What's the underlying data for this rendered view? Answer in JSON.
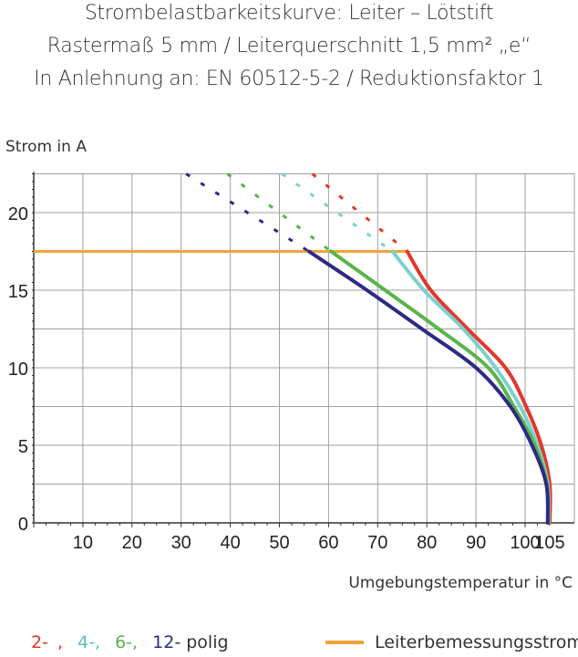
{
  "title_lines": [
    "Strombelastbarkeitskurve: Leiter – Lötstift",
    "Rastermaß 5 mm / Leiterquerschnitt 1,5 mm² „e“",
    "In Anlehnung an: EN 60512-5-2 / Reduktionsfaktor 1"
  ],
  "chart_data": {
    "type": "line",
    "xlabel": "Umgebungstemperatur in °C",
    "ylabel": "Strom in A",
    "xlim": [
      0,
      105
    ],
    "ylim": [
      0,
      22.5
    ],
    "x_ticks": [
      10,
      20,
      30,
      40,
      50,
      60,
      70,
      80,
      90,
      100,
      105
    ],
    "y_ticks": [
      0,
      5,
      10,
      15,
      20
    ],
    "grid": true,
    "series": [
      {
        "name": "2-",
        "color": "#e3372b",
        "points": [
          [
            76,
            17.5
          ],
          [
            80.8,
            15
          ],
          [
            88.3,
            12.5
          ],
          [
            96,
            10
          ],
          [
            100.2,
            7.5
          ],
          [
            103.3,
            5
          ],
          [
            105,
            2.5
          ],
          [
            105,
            0
          ]
        ],
        "dashed": [
          [
            56.7,
            22.5
          ],
          [
            76,
            17.5
          ]
        ]
      },
      {
        "name": "4-",
        "color": "#7dd0cd",
        "points": [
          [
            73,
            17.5
          ],
          [
            79.4,
            15
          ],
          [
            87.4,
            12.5
          ],
          [
            94,
            10
          ],
          [
            99,
            7.5
          ],
          [
            102.5,
            5
          ],
          [
            104.6,
            2.5
          ],
          [
            104.8,
            0
          ]
        ],
        "dashed": [
          [
            50.5,
            22.5
          ],
          [
            73,
            17.5
          ]
        ]
      },
      {
        "name": "6-",
        "color": "#5ab44a",
        "points": [
          [
            60.5,
            17.5
          ],
          [
            71.5,
            15
          ],
          [
            82.4,
            12.5
          ],
          [
            92.5,
            10
          ],
          [
            97.7,
            7.5
          ],
          [
            102,
            5
          ],
          [
            104.4,
            2.5
          ],
          [
            104.7,
            0
          ]
        ],
        "dashed": [
          [
            39.4,
            22.5
          ],
          [
            60.5,
            17.5
          ]
        ]
      },
      {
        "name": "12-",
        "color": "#2d2a85",
        "points": [
          [
            56,
            17.5
          ],
          [
            67.8,
            15
          ],
          [
            79,
            12.5
          ],
          [
            90,
            10
          ],
          [
            97,
            7.5
          ],
          [
            101.4,
            5
          ],
          [
            104.3,
            2.5
          ],
          [
            104.6,
            0
          ]
        ],
        "dashed": [
          [
            31,
            22.5
          ],
          [
            56,
            17.5
          ]
        ]
      }
    ],
    "reference_line": {
      "name": "Leiterbemessungsstrom",
      "color": "#f2a33a",
      "y": 17.5,
      "x_range": [
        0,
        76
      ]
    },
    "legend": {
      "series_suffix": "polig",
      "placement": "bottom"
    }
  }
}
